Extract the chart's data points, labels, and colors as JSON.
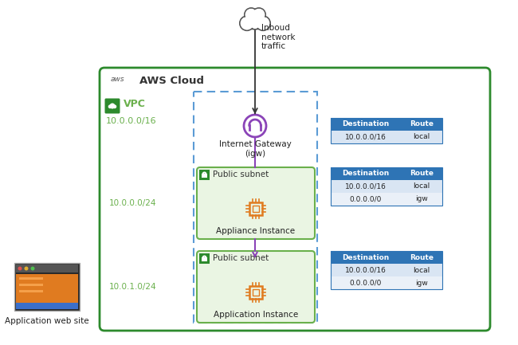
{
  "bg_color": "#ffffff",
  "aws_cloud_label": "AWS Cloud",
  "aws_logo_text": "aws",
  "inbound_label": "Inboud\nnetwork\ntraffic",
  "vpc_label": "VPC",
  "vpc_cidr": "10.0.0.0/16",
  "subnet1_cidr": "10.0.0.0/24",
  "subnet2_cidr": "10.0.1.0/24",
  "igw_label": "Internet Gateway\n(igw)",
  "subnet1_name": "Public subnet",
  "subnet1_instance": "Appliance Instance",
  "subnet2_name": "Public subnet",
  "subnet2_instance": "Application Instance",
  "app_label": "Application web site",
  "route_table1": {
    "headers": [
      "Destination",
      "Route"
    ],
    "rows": [
      [
        "10.0.0.0/16",
        "local"
      ]
    ]
  },
  "route_table2": {
    "headers": [
      "Destination",
      "Route"
    ],
    "rows": [
      [
        "10.0.0.0/16",
        "local"
      ],
      [
        "0.0.0.0/0",
        "igw"
      ]
    ]
  },
  "route_table3": {
    "headers": [
      "Destination",
      "Route"
    ],
    "rows": [
      [
        "10.0.0.0/16",
        "local"
      ],
      [
        "0.0.0.0/0",
        "igw"
      ]
    ]
  },
  "vpc_border_color": "#2d8a2d",
  "vpc_fill_color": "#ffffff",
  "subnet_fill_color": "#eaf5e3",
  "subnet_border_color": "#6ab04c",
  "dashed_border_color": "#5b9bd5",
  "table_header_color": "#2e74b5",
  "table_header_text": "#ffffff",
  "table_row_color": "#d9e5f3",
  "table_row_alt": "#eaf0f8",
  "igw_circle_color": "#8b44b8",
  "chip_color": "#e07b20",
  "green_icon_color": "#2d8a2d",
  "arrow_color": "#333333",
  "purple_arrow_color": "#8b44b8",
  "cidr_label_color": "#6ab04c",
  "font_family": "DejaVu Sans"
}
